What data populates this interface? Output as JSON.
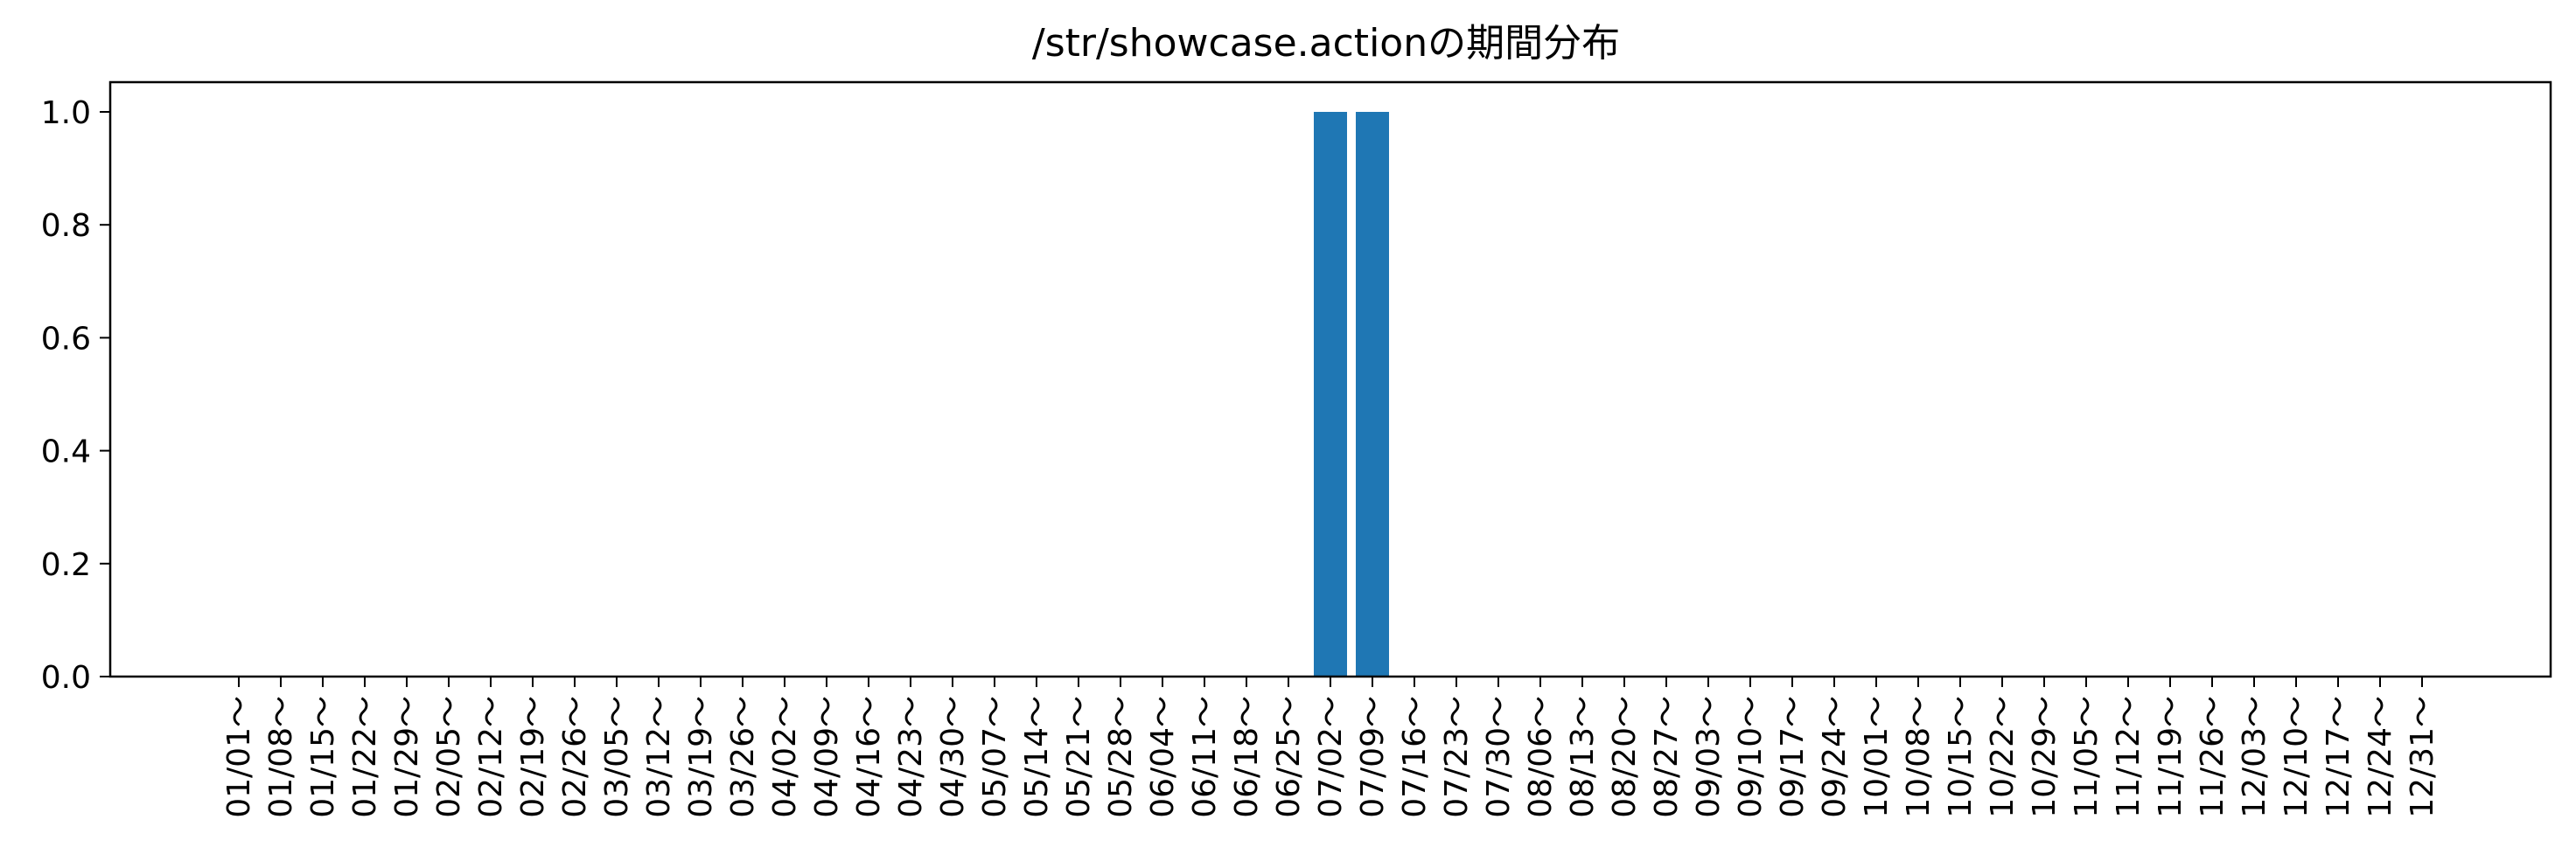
{
  "chart_data": {
    "type": "bar",
    "title": "/str/showcase.actionの期間分布",
    "xlabel": "",
    "ylabel": "",
    "ylim": [
      0,
      1.05
    ],
    "yticks": [
      "0.0",
      "0.2",
      "0.4",
      "0.6",
      "0.8",
      "1.0"
    ],
    "grid": false,
    "bar_color": "#1f77b4",
    "categories": [
      "01/01～",
      "01/08～",
      "01/15～",
      "01/22～",
      "01/29～",
      "02/05～",
      "02/12～",
      "02/19～",
      "02/26～",
      "03/05～",
      "03/12～",
      "03/19～",
      "03/26～",
      "04/02～",
      "04/09～",
      "04/16～",
      "04/23～",
      "04/30～",
      "05/07～",
      "05/14～",
      "05/21～",
      "05/28～",
      "06/04～",
      "06/11～",
      "06/18～",
      "06/25～",
      "07/02～",
      "07/09～",
      "07/16～",
      "07/23～",
      "07/30～",
      "08/06～",
      "08/13～",
      "08/20～",
      "08/27～",
      "09/03～",
      "09/10～",
      "09/17～",
      "09/24～",
      "10/01～",
      "10/08～",
      "10/15～",
      "10/22～",
      "10/29～",
      "11/05～",
      "11/12～",
      "11/19～",
      "11/26～",
      "12/03～",
      "12/10～",
      "12/17～",
      "12/24～",
      "12/31～"
    ],
    "values": [
      0,
      0,
      0,
      0,
      0,
      0,
      0,
      0,
      0,
      0,
      0,
      0,
      0,
      0,
      0,
      0,
      0,
      0,
      0,
      0,
      0,
      0,
      0,
      0,
      0,
      0,
      1,
      1,
      0,
      0,
      0,
      0,
      0,
      0,
      0,
      0,
      0,
      0,
      0,
      0,
      0,
      0,
      0,
      0,
      0,
      0,
      0,
      0,
      0,
      0,
      0,
      0,
      0
    ]
  }
}
